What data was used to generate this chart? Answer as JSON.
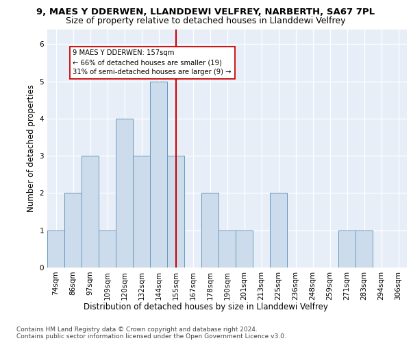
{
  "title1": "9, MAES Y DDERWEN, LLANDDEWI VELFREY, NARBERTH, SA67 7PL",
  "title2": "Size of property relative to detached houses in Llanddewi Velfrey",
  "xlabel": "Distribution of detached houses by size in Llanddewi Velfrey",
  "ylabel": "Number of detached properties",
  "categories": [
    "74sqm",
    "86sqm",
    "97sqm",
    "109sqm",
    "120sqm",
    "132sqm",
    "144sqm",
    "155sqm",
    "167sqm",
    "178sqm",
    "190sqm",
    "201sqm",
    "213sqm",
    "225sqm",
    "236sqm",
    "248sqm",
    "259sqm",
    "271sqm",
    "283sqm",
    "294sqm",
    "306sqm"
  ],
  "values": [
    1,
    2,
    3,
    1,
    4,
    3,
    5,
    3,
    0,
    2,
    1,
    1,
    0,
    2,
    0,
    0,
    0,
    1,
    1,
    0,
    0
  ],
  "bar_color": "#ccdcec",
  "bar_edge_color": "#6699bb",
  "highlight_index": 7,
  "highlight_color_line": "#cc0000",
  "annotation_text": "9 MAES Y DDERWEN: 157sqm\n← 66% of detached houses are smaller (19)\n31% of semi-detached houses are larger (9) →",
  "annotation_box_color": "#ffffff",
  "annotation_box_edge": "#cc0000",
  "ylim": [
    0,
    6.4
  ],
  "yticks": [
    0,
    1,
    2,
    3,
    4,
    5,
    6
  ],
  "background_color": "#e8eef8",
  "footer": "Contains HM Land Registry data © Crown copyright and database right 2024.\nContains public sector information licensed under the Open Government Licence v3.0.",
  "title1_fontsize": 9.5,
  "title2_fontsize": 9,
  "xlabel_fontsize": 8.5,
  "ylabel_fontsize": 8.5,
  "tick_fontsize": 7.5,
  "footer_fontsize": 6.5
}
